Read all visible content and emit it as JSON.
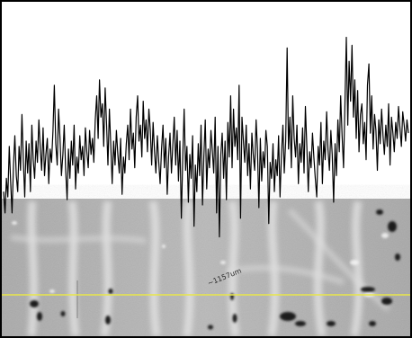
{
  "image_annotation": {
    "scale_text": "~1157um"
  },
  "colors": {
    "trace": "#000000",
    "scan_line": "#e8e64a",
    "background_gray": "#b4b4b4",
    "frame": "#000000"
  },
  "chart_data": {
    "type": "line",
    "title": "",
    "xlabel": "",
    "ylabel": "",
    "grid": false,
    "legend": "none",
    "xlim": [
      0,
      300
    ],
    "ylim": [
      0,
      1
    ],
    "series": [
      {
        "values": [
          0.3,
          0.22,
          0.35,
          0.28,
          0.47,
          0.34,
          0.22,
          0.4,
          0.51,
          0.36,
          0.3,
          0.47,
          0.38,
          0.59,
          0.41,
          0.28,
          0.49,
          0.37,
          0.48,
          0.3,
          0.55,
          0.42,
          0.35,
          0.49,
          0.41,
          0.57,
          0.46,
          0.38,
          0.54,
          0.36,
          0.44,
          0.5,
          0.33,
          0.46,
          0.41,
          0.53,
          0.7,
          0.48,
          0.4,
          0.61,
          0.5,
          0.36,
          0.44,
          0.55,
          0.38,
          0.27,
          0.46,
          0.35,
          0.49,
          0.4,
          0.55,
          0.31,
          0.43,
          0.37,
          0.51,
          0.42,
          0.47,
          0.36,
          0.54,
          0.45,
          0.39,
          0.53,
          0.44,
          0.5,
          0.41,
          0.57,
          0.66,
          0.5,
          0.72,
          0.58,
          0.63,
          0.47,
          0.69,
          0.55,
          0.4,
          0.61,
          0.47,
          0.33,
          0.49,
          0.4,
          0.53,
          0.44,
          0.37,
          0.5,
          0.29,
          0.43,
          0.37,
          0.48,
          0.55,
          0.42,
          0.61,
          0.46,
          0.52,
          0.39,
          0.58,
          0.66,
          0.49,
          0.55,
          0.43,
          0.64,
          0.5,
          0.57,
          0.45,
          0.61,
          0.53,
          0.4,
          0.56,
          0.45,
          0.37,
          0.51,
          0.41,
          0.33,
          0.46,
          0.55,
          0.39,
          0.5,
          0.29,
          0.43,
          0.52,
          0.37,
          0.48,
          0.58,
          0.4,
          0.53,
          0.34,
          0.49,
          0.2,
          0.42,
          0.61,
          0.38,
          0.47,
          0.26,
          0.44,
          0.35,
          0.51,
          0.17,
          0.4,
          0.3,
          0.48,
          0.36,
          0.55,
          0.25,
          0.43,
          0.57,
          0.31,
          0.46,
          0.39,
          0.53,
          0.45,
          0.37,
          0.58,
          0.22,
          0.47,
          0.13,
          0.44,
          0.52,
          0.35,
          0.49,
          0.27,
          0.56,
          0.43,
          0.66,
          0.39,
          0.61,
          0.47,
          0.54,
          0.42,
          0.7,
          0.2,
          0.58,
          0.49,
          0.41,
          0.55,
          0.36,
          0.48,
          0.31,
          0.52,
          0.44,
          0.38,
          0.57,
          0.46,
          0.24,
          0.5,
          0.34,
          0.45,
          0.39,
          0.53,
          0.47,
          0.18,
          0.41,
          0.35,
          0.48,
          0.3,
          0.42,
          0.36,
          0.51,
          0.28,
          0.44,
          0.55,
          0.37,
          0.49,
          0.84,
          0.46,
          0.58,
          0.39,
          0.66,
          0.5,
          0.43,
          0.55,
          0.33,
          0.48,
          0.41,
          0.54,
          0.37,
          0.62,
          0.47,
          0.3,
          0.45,
          0.39,
          0.52,
          0.43,
          0.35,
          0.28,
          0.47,
          0.4,
          0.56,
          0.33,
          0.49,
          0.42,
          0.6,
          0.46,
          0.38,
          0.53,
          0.44,
          0.26,
          0.48,
          0.36,
          0.57,
          0.45,
          0.66,
          0.51,
          0.39,
          0.62,
          0.88,
          0.55,
          0.79,
          0.64,
          0.85,
          0.58,
          0.72,
          0.5,
          0.68,
          0.45,
          0.59,
          0.63,
          0.48,
          0.56,
          0.42,
          0.7,
          0.78,
          0.52,
          0.66,
          0.46,
          0.59,
          0.53,
          0.38,
          0.57,
          0.48,
          0.61,
          0.51,
          0.44,
          0.55,
          0.47,
          0.63,
          0.4,
          0.58,
          0.52,
          0.45,
          0.56,
          0.5,
          0.62,
          0.54,
          0.47,
          0.6,
          0.55,
          0.49,
          0.57,
          0.52
        ]
      }
    ]
  }
}
